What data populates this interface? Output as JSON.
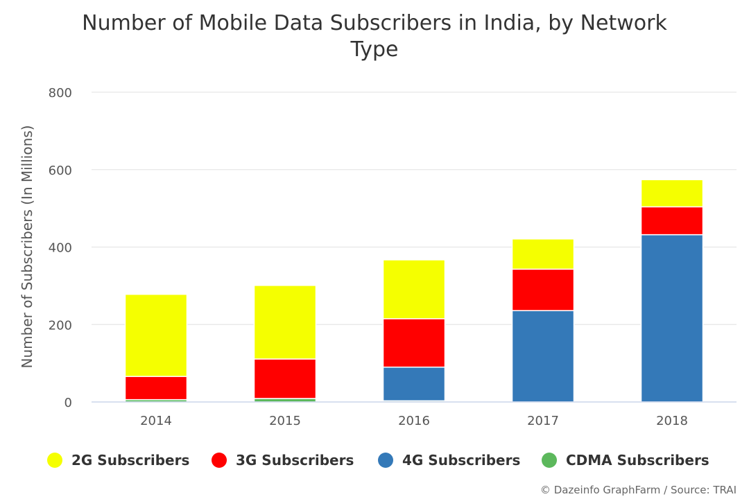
{
  "chart_data": {
    "type": "bar",
    "stacked": true,
    "title_line1": "Number of Mobile Data Subscribers in India, by Network",
    "title_line2": "Type",
    "ylabel": "Number of Subscribers (In Millions)",
    "xlabel": "",
    "ylim": [
      0,
      800
    ],
    "yticks": [
      "0",
      "200",
      "400",
      "600",
      "800"
    ],
    "grid": true,
    "legend_position": "bottom",
    "categories": [
      "2014",
      "2015",
      "2016",
      "2017",
      "2018"
    ],
    "series": [
      {
        "name": "2G Subscribers",
        "color": "#f5ff00",
        "values": [
          212,
          190,
          152,
          78,
          70
        ]
      },
      {
        "name": "3G Subscribers",
        "color": "#ff0000",
        "values": [
          60,
          102,
          125,
          107,
          72
        ]
      },
      {
        "name": "4G Subscribers",
        "color": "#3479b8",
        "values": [
          0,
          0,
          87,
          236,
          432
        ]
      },
      {
        "name": "CDMA Subscribers",
        "color": "#5cb85c",
        "values": [
          6,
          9,
          3,
          0,
          0
        ]
      }
    ],
    "credit": "© Dazeinfo GraphFarm / Source: TRAI"
  }
}
